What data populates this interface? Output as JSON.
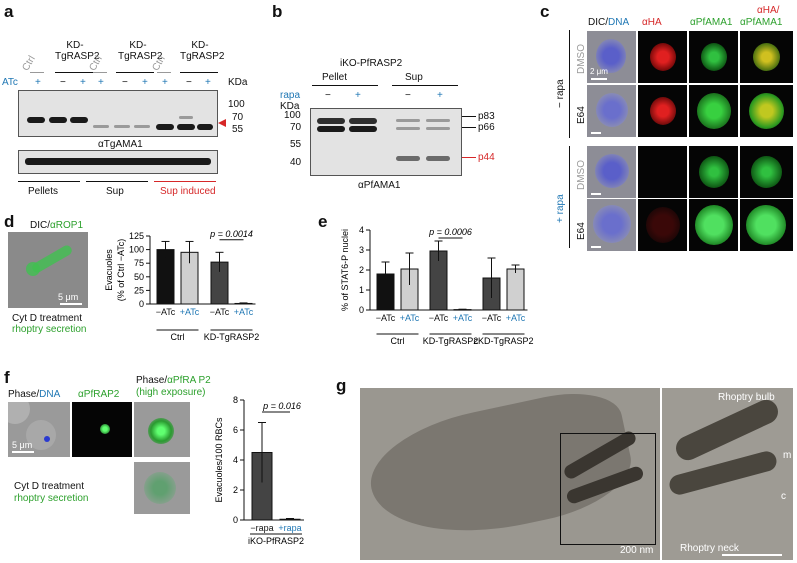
{
  "panels": {
    "a": {
      "label": "a",
      "atc_label": "ATc",
      "kda_label": "KDa",
      "headers": [
        "Ctrl",
        "KD-TgRASP2",
        "Ctrl",
        "KD-TgRASP2",
        "Ctrl",
        "KD-TgRASP2"
      ],
      "signs": [
        "+",
        "−",
        "+",
        "+",
        "−",
        "+",
        "+",
        "−",
        "+"
      ],
      "markers": [
        "100",
        "70",
        "55"
      ],
      "antibody": "αTgAMA1",
      "groups": [
        "Pellets",
        "Sup",
        "Sup induced"
      ]
    },
    "b": {
      "label": "b",
      "title": "iKO-PfRASP2",
      "rapa_label": "rapa",
      "kda_label": "KDa",
      "groups": [
        "Pellet",
        "Sup"
      ],
      "signs": [
        "−",
        "+",
        "−",
        "+"
      ],
      "markers": [
        "100",
        "70",
        "55",
        "40"
      ],
      "bands": [
        "p83",
        "p66",
        "p44"
      ],
      "antibody": "αPfAMA1"
    },
    "c": {
      "label": "c",
      "col_headers": [
        "DIC/",
        "DNA",
        "αHA",
        "αPfAMA1",
        "αHA/",
        "αPfAMA1"
      ],
      "rapa_groups": [
        "− rapa",
        "+ rapa"
      ],
      "rows": [
        "DMSO",
        "E64",
        "DMSO",
        "E64"
      ],
      "scale": "2 μm"
    },
    "d": {
      "label": "d",
      "image_title": "DIC/",
      "image_title_green": "αROP1",
      "scale": "5 μm",
      "caption1": "Cyt D treatment",
      "caption2": "rhoptry secretion",
      "ylabel": "Evacuoles\n(% of Ctrl −ATc)",
      "pvalue": "p = 0.0014",
      "groups": [
        "Ctrl",
        "KD-TgRASP2"
      ]
    },
    "e": {
      "label": "e",
      "ylabel": "% of STAT6-P nuclei",
      "pvalue": "p = 0.0006",
      "groups": [
        "Ctrl",
        "KD-TgRASP2",
        "cKD-TgRASP2"
      ]
    },
    "f": {
      "label": "f",
      "titles": [
        "Phase/",
        "DNA",
        "αPfRAP2",
        "Phase/",
        "αPfRA P2",
        "(high exposure)"
      ],
      "scale": "5 μm",
      "caption1": "Cyt D treatment",
      "caption2": "rhoptry secretion",
      "ylabel": "Evacuoles/100 RBCs",
      "pvalue": "p = 0.016",
      "xlabel": "iKO-PfRASP2"
    },
    "g": {
      "label": "g",
      "annotations": [
        "Rhoptry bulb",
        "Rhoptry neck",
        "m",
        "c"
      ],
      "scale": "200 nm"
    }
  },
  "chart_data": [
    {
      "id": "d",
      "type": "bar",
      "categories": [
        "−ATc",
        "+ATc",
        "−ATc",
        "+ATc"
      ],
      "groups": [
        "Ctrl",
        "Ctrl",
        "KD-TgRASP2",
        "KD-TgRASP2"
      ],
      "values": [
        100,
        95,
        77,
        1
      ],
      "errors": [
        15,
        20,
        18,
        1
      ],
      "colors": [
        "#111111",
        "#d0d0d0",
        "#444444",
        "#d0d0d0"
      ],
      "ylabel": "Evacuoles (% of Ctrl −ATc)",
      "ylim": [
        0,
        125
      ],
      "yticks": [
        0,
        25,
        50,
        75,
        100,
        125
      ],
      "pvalue": "p = 0.0014"
    },
    {
      "id": "e",
      "type": "bar",
      "categories": [
        "−ATc",
        "+ATc",
        "−ATc",
        "+ATc",
        "−ATc",
        "+ATc"
      ],
      "groups": [
        "Ctrl",
        "Ctrl",
        "KD-TgRASP2",
        "KD-TgRASP2",
        "cKD-TgRASP2",
        "cKD-TgRASP2"
      ],
      "values": [
        1.8,
        2.05,
        2.95,
        0.02,
        1.6,
        2.05
      ],
      "errors": [
        0.6,
        0.8,
        0.5,
        0.02,
        1.0,
        0.2
      ],
      "colors": [
        "#111111",
        "#d0d0d0",
        "#444444",
        "#d0d0d0",
        "#444444",
        "#d0d0d0"
      ],
      "ylabel": "% of STAT6-P nuclei",
      "ylim": [
        0,
        4
      ],
      "yticks": [
        0,
        1,
        2,
        3,
        4
      ],
      "pvalue": "p = 0.0006"
    },
    {
      "id": "f",
      "type": "bar",
      "categories": [
        "−rapa",
        "+rapa"
      ],
      "values": [
        4.5,
        0.05
      ],
      "errors": [
        2.0,
        0.05
      ],
      "colors": [
        "#444444",
        "#d0d0d0"
      ],
      "ylabel": "Evacuoles/100 RBCs",
      "xlabel": "iKO-PfRASP2",
      "ylim": [
        0,
        8
      ],
      "yticks": [
        0,
        2,
        4,
        6,
        8
      ],
      "pvalue": "p = 0.016"
    }
  ]
}
